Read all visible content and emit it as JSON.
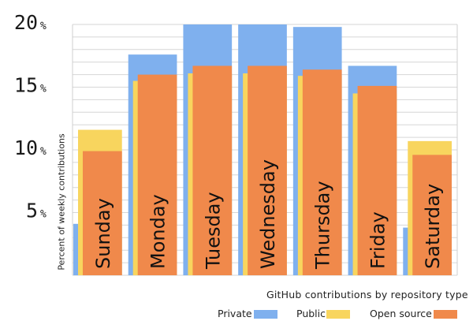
{
  "chart_data": {
    "type": "bar",
    "title": "GitHub contributions by repository type",
    "ylabel": "Percent of weekly contributions",
    "ylim": [
      0,
      20
    ],
    "y_ticks": [
      {
        "value": 5,
        "label": "5",
        "unit": "%"
      },
      {
        "value": 10,
        "label": "10",
        "unit": "%"
      },
      {
        "value": 15,
        "label": "15",
        "unit": "%"
      },
      {
        "value": 20,
        "label": "20",
        "unit": "%"
      }
    ],
    "categories": [
      "Sunday",
      "Monday",
      "Tuesday",
      "Wednesday",
      "Thursday",
      "Friday",
      "Saturday"
    ],
    "series": [
      {
        "name": "Private",
        "color": "#7fb0ee",
        "values": [
          4.1,
          17.6,
          20.0,
          20.0,
          19.8,
          16.7,
          3.8
        ]
      },
      {
        "name": "Public",
        "color": "#f8d55e",
        "values": [
          11.6,
          15.5,
          16.1,
          16.1,
          15.9,
          14.5,
          10.7
        ]
      },
      {
        "name": "Open source",
        "color": "#f0894b",
        "values": [
          9.9,
          16.0,
          16.7,
          16.7,
          16.4,
          15.1,
          9.6
        ]
      }
    ],
    "grid": true,
    "legend_position": "bottom-right"
  }
}
